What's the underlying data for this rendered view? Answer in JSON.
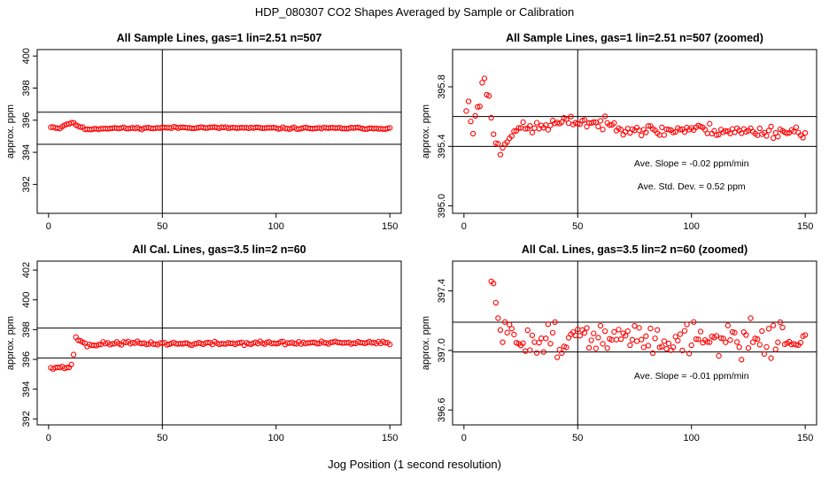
{
  "figure": {
    "title": "HDP_080307  CO2 Shapes Averaged by Sample or Calibration",
    "xlabel": "Jog Position (1 second resolution)"
  },
  "colors": {
    "points": "#ff0000",
    "axes": "#000000",
    "background": "#ffffff"
  },
  "chart_data": [
    {
      "type": "scatter",
      "title": "All Sample Lines, gas=1 lin=2.51 n=507",
      "ylabel": "approx. ppm",
      "xlim": [
        -5,
        155
      ],
      "ylim": [
        390.2,
        400.4
      ],
      "xticks": [
        0,
        50,
        100,
        150
      ],
      "yticks": [
        392,
        394,
        396,
        398,
        400
      ],
      "vline": 50,
      "hlines": [
        394.5,
        396.5
      ],
      "annotations": [],
      "series": {
        "anchors": [
          [
            1,
            395.6
          ],
          [
            3,
            395.55
          ],
          [
            5,
            395.5
          ],
          [
            7,
            395.7
          ],
          [
            10,
            395.85
          ],
          [
            13,
            395.65
          ],
          [
            16,
            395.45
          ],
          [
            19,
            395.45
          ],
          [
            25,
            395.5
          ],
          [
            40,
            395.5
          ],
          [
            60,
            395.55
          ],
          [
            100,
            395.5
          ],
          [
            150,
            395.5
          ]
        ],
        "seed": 11,
        "noise": 0.03
      }
    },
    {
      "type": "scatter",
      "title": "All Sample Lines, gas=1 lin=2.51 n=507 (zoomed)",
      "ylabel": "approx. ppm",
      "xlim": [
        -5,
        155
      ],
      "ylim": [
        394.95,
        396.05
      ],
      "xticks": [
        0,
        50,
        100,
        150
      ],
      "yticks": [
        395.0,
        395.4,
        395.8
      ],
      "ytick_labels": [
        "395.0",
        "395.4",
        "395.8"
      ],
      "vline": 50,
      "hlines": [
        395.4,
        395.6
      ],
      "annotations": [
        "Ave. Slope =  -0.02  ppm/min",
        "Ave. Std. Dev. =  0.52  ppm"
      ],
      "series": {
        "anchors": [
          [
            1,
            395.65
          ],
          [
            2,
            395.68
          ],
          [
            3,
            395.58
          ],
          [
            4,
            395.48
          ],
          [
            5,
            395.62
          ],
          [
            6,
            395.68
          ],
          [
            7,
            395.7
          ],
          [
            8,
            395.8
          ],
          [
            9,
            395.84
          ],
          [
            10,
            395.78
          ],
          [
            11,
            395.72
          ],
          [
            12,
            395.6
          ],
          [
            13,
            395.5
          ],
          [
            14,
            395.42
          ],
          [
            16,
            395.37
          ],
          [
            18,
            395.42
          ],
          [
            20,
            395.48
          ],
          [
            23,
            395.52
          ],
          [
            30,
            395.52
          ],
          [
            40,
            395.55
          ],
          [
            50,
            395.57
          ],
          [
            60,
            395.55
          ],
          [
            70,
            395.53
          ],
          [
            85,
            395.5
          ],
          [
            100,
            395.52
          ],
          [
            120,
            395.5
          ],
          [
            150,
            395.5
          ]
        ],
        "seed": 23,
        "noise": 0.02
      }
    },
    {
      "type": "scatter",
      "title": "All Cal. Lines, gas=3.5 lin=2 n=60",
      "ylabel": "approx. ppm",
      "xlim": [
        -5,
        155
      ],
      "ylim": [
        391.6,
        402.6
      ],
      "xticks": [
        0,
        50,
        100,
        150
      ],
      "yticks": [
        392,
        394,
        396,
        398,
        400,
        402
      ],
      "vline": 50,
      "hlines": [
        396.1,
        398.1
      ],
      "annotations": [],
      "series": {
        "anchors": [
          [
            1,
            395.5
          ],
          [
            8,
            395.45
          ],
          [
            10,
            395.55
          ],
          [
            11,
            396.4
          ],
          [
            12,
            397.4
          ],
          [
            15,
            397.2
          ],
          [
            17,
            396.9
          ],
          [
            20,
            397.0
          ],
          [
            30,
            397.1
          ],
          [
            60,
            397.05
          ],
          [
            100,
            397.1
          ],
          [
            150,
            397.1
          ]
        ],
        "seed": 37,
        "noise": 0.06
      }
    },
    {
      "type": "scatter",
      "title": "All Cal. Lines, gas=3.5 lin=2 n=60 (zoomed)",
      "ylabel": "approx. ppm",
      "xlim": [
        -5,
        155
      ],
      "ylim": [
        396.5,
        397.6
      ],
      "xticks": [
        0,
        50,
        100,
        150
      ],
      "yticks": [
        396.6,
        397.0,
        397.4
      ],
      "ytick_labels": [
        "396.6",
        "397.0",
        "397.4"
      ],
      "vline": 50,
      "hlines": [
        396.99,
        397.19
      ],
      "annotations": [
        "Ave. Slope =  -0.01  ppm/min"
      ],
      "series": {
        "x_start": 12,
        "anchors": [
          [
            12,
            397.42
          ],
          [
            13,
            397.43
          ],
          [
            14,
            397.36
          ],
          [
            15,
            397.15
          ],
          [
            20,
            397.08
          ],
          [
            50,
            397.08
          ],
          [
            100,
            397.08
          ],
          [
            150,
            397.08
          ]
        ],
        "seed": 51,
        "noise": 0.055
      }
    }
  ]
}
